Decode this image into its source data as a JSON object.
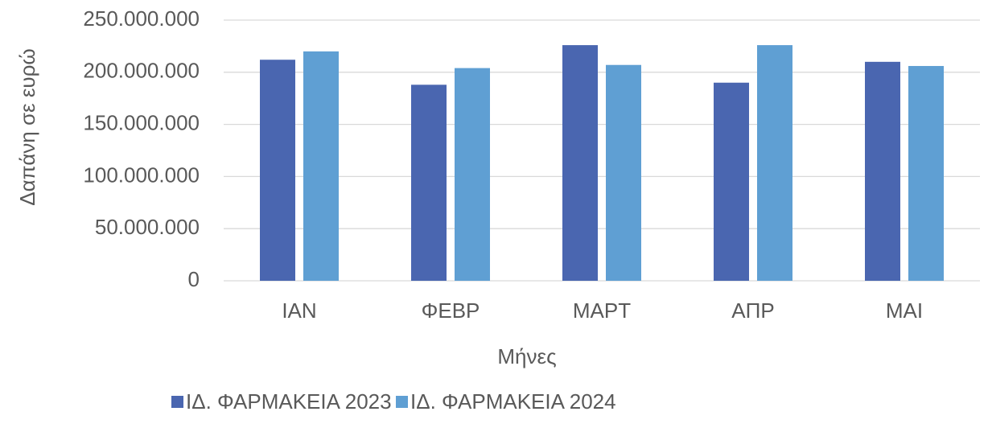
{
  "chart_data": {
    "type": "bar",
    "ylabel": "Δαπάνη σε ευρώ",
    "xlabel": "Μήνες",
    "categories": [
      "ΙΑΝ",
      "ΦΕΒΡ",
      "ΜΑΡΤ",
      "ΑΠΡ",
      "ΜΑΙ"
    ],
    "series": [
      {
        "name": "ΙΔ. ΦΑΡΜΑΚΕΙΑ 2023",
        "color": "#4a66b0",
        "values": [
          212000000,
          188000000,
          226000000,
          190000000,
          210000000
        ]
      },
      {
        "name": "ΙΔ. ΦΑΡΜΑΚΕΙΑ 2024",
        "color": "#5f9fd3",
        "values": [
          220000000,
          204000000,
          207000000,
          226000000,
          206000000
        ]
      }
    ],
    "ylim": [
      0,
      250000000
    ],
    "yticks": [
      {
        "value": 0,
        "label": "0"
      },
      {
        "value": 50000000,
        "label": "50.000.000"
      },
      {
        "value": 100000000,
        "label": "100.000.000"
      },
      {
        "value": 150000000,
        "label": "150.000.000"
      },
      {
        "value": 200000000,
        "label": "200.000.000"
      },
      {
        "value": 250000000,
        "label": "250.000.000"
      }
    ],
    "grid": true,
    "legend": "bottom"
  }
}
